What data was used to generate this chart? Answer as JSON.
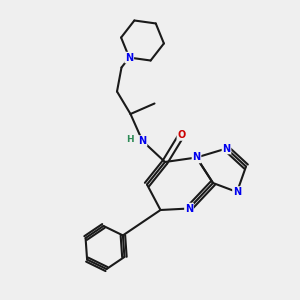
{
  "bg_color": "#efefef",
  "bond_color": "#1a1a1a",
  "N_color": "#0000ee",
  "O_color": "#cc0000",
  "H_color": "#2e8b57",
  "line_width": 1.5,
  "fig_w": 3.0,
  "fig_h": 3.0,
  "dpi": 100,
  "xlim": [
    0,
    10
  ],
  "ylim": [
    0,
    10
  ]
}
